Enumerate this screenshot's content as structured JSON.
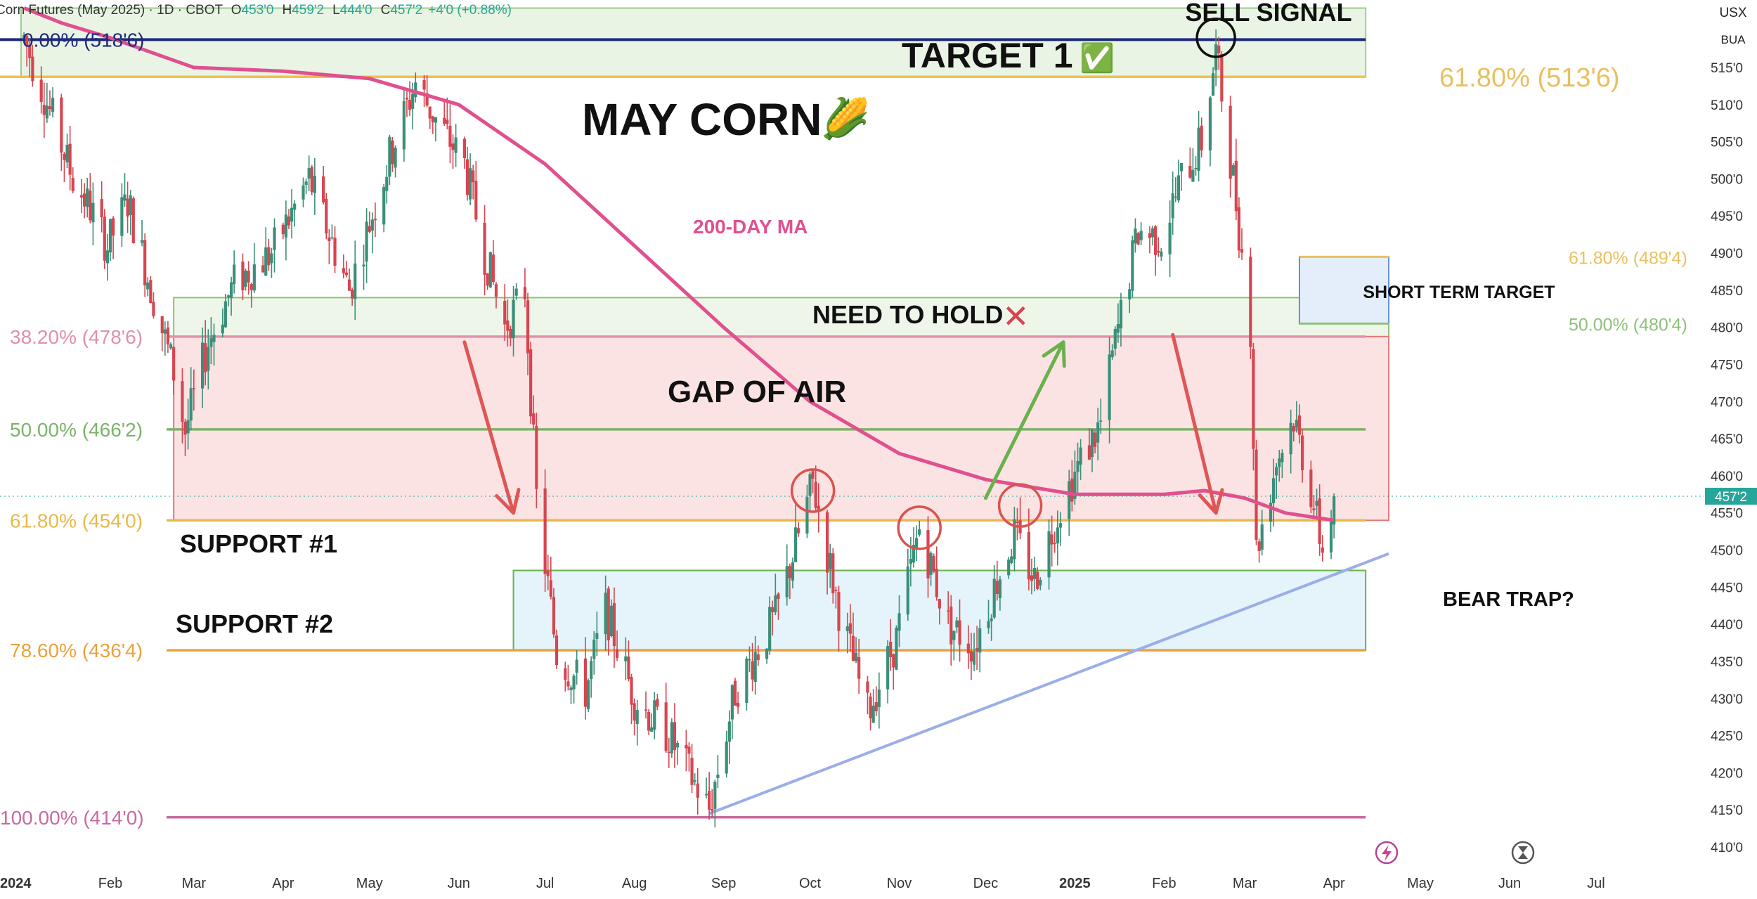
{
  "header": {
    "symbol_title": "Corn Futures (May 2025)",
    "interval": "1D",
    "exchange": "CBOT",
    "ohlc": {
      "o_label": "O",
      "o": "453'0",
      "h_label": "H",
      "h": "459'2",
      "l_label": "L",
      "l": "444'0",
      "c_label": "C",
      "c": "457'2",
      "change": "+4'0 (+0.88%)"
    },
    "currency": "USX",
    "unit": "BUA"
  },
  "chart_data": {
    "type": "candlestick",
    "title": "MAY CORN",
    "title_emoji": "🌽",
    "ylim": [
      406,
      523
    ],
    "y_ticks": [
      {
        "value": 410,
        "label": "410'0"
      },
      {
        "value": 415,
        "label": "415'0"
      },
      {
        "value": 420,
        "label": "420'0"
      },
      {
        "value": 425,
        "label": "425'0"
      },
      {
        "value": 430,
        "label": "430'0"
      },
      {
        "value": 435,
        "label": "435'0"
      },
      {
        "value": 440,
        "label": "440'0"
      },
      {
        "value": 445,
        "label": "445'0"
      },
      {
        "value": 450,
        "label": "450'0"
      },
      {
        "value": 455,
        "label": "455'0"
      },
      {
        "value": 460,
        "label": "460'0"
      },
      {
        "value": 465,
        "label": "465'0"
      },
      {
        "value": 470,
        "label": "470'0"
      },
      {
        "value": 475,
        "label": "475'0"
      },
      {
        "value": 480,
        "label": "480'0"
      },
      {
        "value": 485,
        "label": "485'0"
      },
      {
        "value": 490,
        "label": "490'0"
      },
      {
        "value": 495,
        "label": "495'0"
      },
      {
        "value": 500,
        "label": "500'0"
      },
      {
        "value": 505,
        "label": "505'0"
      },
      {
        "value": 510,
        "label": "510'0"
      },
      {
        "value": 515,
        "label": "515'0"
      }
    ],
    "x_ticks": [
      {
        "date": "2024-01-01",
        "label": "2024",
        "bold": true
      },
      {
        "date": "2024-02-01",
        "label": "Feb",
        "bold": false
      },
      {
        "date": "2024-03-01",
        "label": "Mar",
        "bold": false
      },
      {
        "date": "2024-04-01",
        "label": "Apr",
        "bold": false
      },
      {
        "date": "2024-05-01",
        "label": "May",
        "bold": false
      },
      {
        "date": "2024-06-01",
        "label": "Jun",
        "bold": false
      },
      {
        "date": "2024-07-01",
        "label": "Jul",
        "bold": false
      },
      {
        "date": "2024-08-01",
        "label": "Aug",
        "bold": false
      },
      {
        "date": "2024-09-01",
        "label": "Sep",
        "bold": false
      },
      {
        "date": "2024-10-01",
        "label": "Oct",
        "bold": false
      },
      {
        "date": "2024-11-01",
        "label": "Nov",
        "bold": false
      },
      {
        "date": "2024-12-01",
        "label": "Dec",
        "bold": false
      },
      {
        "date": "2025-01-01",
        "label": "2025",
        "bold": true
      },
      {
        "date": "2025-02-01",
        "label": "Feb",
        "bold": false
      },
      {
        "date": "2025-03-01",
        "label": "Mar",
        "bold": false
      },
      {
        "date": "2025-04-01",
        "label": "Apr",
        "bold": false
      },
      {
        "date": "2025-05-01",
        "label": "May",
        "bold": false
      },
      {
        "date": "2025-06-01",
        "label": "Jun",
        "bold": false
      },
      {
        "date": "2025-07-01",
        "label": "Jul",
        "bold": false
      }
    ],
    "last_price": {
      "value": 457.25,
      "label": "457'2",
      "color": "#26a69a"
    },
    "price_path": [
      [
        "2024-01-02",
        519
      ],
      [
        "2024-01-12",
        508
      ],
      [
        "2024-01-19",
        500
      ],
      [
        "2024-01-25",
        496
      ],
      [
        "2024-01-31",
        491
      ],
      [
        "2024-02-07",
        497
      ],
      [
        "2024-02-16",
        484
      ],
      [
        "2024-02-23",
        474
      ],
      [
        "2024-02-27",
        466
      ],
      [
        "2024-03-06",
        478
      ],
      [
        "2024-03-15",
        486
      ],
      [
        "2024-03-28",
        490
      ],
      [
        "2024-04-10",
        500
      ],
      [
        "2024-04-24",
        485
      ],
      [
        "2024-05-08",
        503
      ],
      [
        "2024-05-17",
        513
      ],
      [
        "2024-05-24",
        508
      ],
      [
        "2024-06-03",
        502
      ],
      [
        "2024-06-10",
        490
      ],
      [
        "2024-06-17",
        480
      ],
      [
        "2024-06-24",
        485
      ],
      [
        "2024-06-28",
        457
      ],
      [
        "2024-07-05",
        436
      ],
      [
        "2024-07-15",
        431
      ],
      [
        "2024-07-22",
        442
      ],
      [
        "2024-08-01",
        430
      ],
      [
        "2024-08-13",
        425
      ],
      [
        "2024-08-27",
        415
      ],
      [
        "2024-09-05",
        431
      ],
      [
        "2024-09-19",
        441
      ],
      [
        "2024-09-27",
        452
      ],
      [
        "2024-10-02",
        459
      ],
      [
        "2024-10-11",
        442
      ],
      [
        "2024-10-21",
        428
      ],
      [
        "2024-10-31",
        438
      ],
      [
        "2024-11-08",
        453
      ],
      [
        "2024-11-18",
        440
      ],
      [
        "2024-11-27",
        437
      ],
      [
        "2024-12-05",
        446
      ],
      [
        "2024-12-11",
        452
      ],
      [
        "2024-12-18",
        446
      ],
      [
        "2024-12-27",
        456
      ],
      [
        "2025-01-03",
        462
      ],
      [
        "2025-01-10",
        467
      ],
      [
        "2025-01-14",
        476
      ],
      [
        "2025-01-23",
        493
      ],
      [
        "2025-01-31",
        492
      ],
      [
        "2025-02-07",
        500
      ],
      [
        "2025-02-14",
        505
      ],
      [
        "2025-02-19",
        517
      ],
      [
        "2025-02-25",
        500
      ],
      [
        "2025-03-03",
        480
      ],
      [
        "2025-03-05",
        450
      ],
      [
        "2025-03-12",
        462
      ],
      [
        "2025-03-18",
        468
      ],
      [
        "2025-03-24",
        458
      ],
      [
        "2025-03-28",
        450
      ],
      [
        "2025-04-01",
        457
      ]
    ],
    "moving_average": {
      "label": "200-DAY MA",
      "color": "#e0508f",
      "points": [
        [
          "2024-01-02",
          523
        ],
        [
          "2024-01-15",
          521
        ],
        [
          "2024-02-01",
          519
        ],
        [
          "2024-03-01",
          515
        ],
        [
          "2024-04-01",
          514.5
        ],
        [
          "2024-05-01",
          513.5
        ],
        [
          "2024-06-01",
          510
        ],
        [
          "2024-07-01",
          502
        ],
        [
          "2024-08-01",
          491
        ],
        [
          "2024-09-01",
          480
        ],
        [
          "2024-10-01",
          470
        ],
        [
          "2024-11-01",
          463
        ],
        [
          "2024-12-01",
          459.5
        ],
        [
          "2025-01-01",
          457.5
        ],
        [
          "2025-02-01",
          457.5
        ],
        [
          "2025-02-15",
          458
        ],
        [
          "2025-03-01",
          457
        ],
        [
          "2025-03-15",
          455
        ],
        [
          "2025-04-01",
          454
        ]
      ]
    },
    "fib_levels_left": [
      {
        "label": "0.00% (518'6)",
        "value": 518.75,
        "color": "#1e2a78"
      },
      {
        "label": "38.20% (478'6)",
        "value": 478.75,
        "color": "#e091a8"
      },
      {
        "label": "50.00% (466'2)",
        "value": 466.25,
        "color": "#7cb36a"
      },
      {
        "label": "61.80% (454'0)",
        "value": 454,
        "color": "#e8b84a"
      },
      {
        "label": "78.60% (436'4)",
        "value": 436.5,
        "color": "#eba23c"
      },
      {
        "label": "100.00% (414'0)",
        "value": 414,
        "color": "#c86aa0"
      }
    ],
    "fib_levels_right": [
      {
        "label": "61.80% (513'6)",
        "value": 513.75,
        "color": "#e8c060"
      },
      {
        "label": "61.80% (489'4)",
        "value": 489.5,
        "color": "#e8c060"
      },
      {
        "label": "50.00% (480'4)",
        "value": 480.5,
        "color": "#8fc07a"
      }
    ],
    "zones": [
      {
        "name": "target-zone",
        "from_date": "2024-01-01",
        "to_date": "2025-04-12",
        "low": 513.75,
        "high": 523,
        "fill": "#e9f4e4",
        "stroke": "#9ccf8c"
      },
      {
        "name": "need-to-hold-zone",
        "from_date": "2024-02-23",
        "to_date": "2025-04-20",
        "low": 478.75,
        "high": 484,
        "fill": "#eef6ea",
        "stroke": "#8fc07a"
      },
      {
        "name": "gap-of-air-zone",
        "from_date": "2024-02-23",
        "to_date": "2025-04-20",
        "low": 454,
        "high": 478.75,
        "fill": "#fbe3e3",
        "stroke": "#e07a7a"
      },
      {
        "name": "support-2-zone",
        "from_date": "2024-06-20",
        "to_date": "2025-04-12",
        "low": 436.5,
        "high": 447.25,
        "fill": "#e4f4fa",
        "stroke": "#6ab04c"
      },
      {
        "name": "short-term-target-zone",
        "from_date": "2025-03-20",
        "to_date": "2025-04-20",
        "low": 480.5,
        "high": 489.5,
        "fill": "#e4eefb",
        "stroke": "#6a8fd0"
      }
    ],
    "trendline": {
      "color": "#9aaee8",
      "from": [
        "2024-08-27",
        414.5
      ],
      "to": [
        "2025-04-20",
        449.5
      ]
    },
    "annotations": {
      "sell_signal": "SELL SIGNAL",
      "target_1": "TARGET 1",
      "target_1_check": "✅",
      "ma_label": "200-DAY MA",
      "need_to_hold": "NEED TO HOLD",
      "need_to_hold_mark": "✕",
      "gap_of_air": "GAP OF AIR",
      "support_1": "SUPPORT #1",
      "support_2": "SUPPORT #2",
      "short_term_target": "SHORT TERM TARGET",
      "bear_trap": "BEAR TRAP?"
    },
    "circles": [
      {
        "date": "2024-10-02",
        "value": 458,
        "color": "#d9534f"
      },
      {
        "date": "2024-11-08",
        "value": 453,
        "color": "#d9534f"
      },
      {
        "date": "2024-12-13",
        "value": 456,
        "color": "#d9534f"
      },
      {
        "date": "2025-02-19",
        "value": 519,
        "color": "#111111"
      }
    ],
    "arrows": [
      {
        "from": [
          "2024-06-03",
          478
        ],
        "to": [
          "2024-06-20",
          455
        ],
        "color": "#e05555"
      },
      {
        "from": [
          "2024-12-01",
          457
        ],
        "to": [
          "2024-12-28",
          478
        ],
        "color": "#6ab04c"
      },
      {
        "from": [
          "2025-02-04",
          479
        ],
        "to": [
          "2025-02-19",
          455
        ],
        "color": "#e05555"
      }
    ]
  }
}
